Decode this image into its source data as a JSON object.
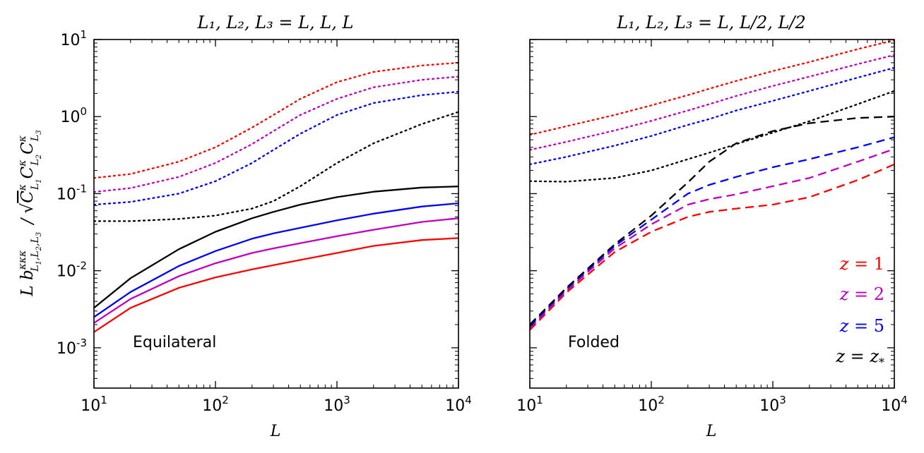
{
  "chart_data": [
    {
      "type": "line",
      "title": "L₁, L₂, L₃ = L, L, L",
      "xlabel": "L",
      "ylabel": "L b^{κκκ}_{L₁,L₂,L₃} / √(C^κ_{L₁} C^κ_{L₂} C^κ_{L₃})",
      "xscale": "log",
      "yscale": "log",
      "xlim": [
        10,
        10000
      ],
      "ylim": [
        0.0003,
        10
      ],
      "annotation": "Equilateral",
      "x": [
        10,
        20,
        50,
        100,
        200,
        300,
        500,
        1000,
        2000,
        5000,
        10000
      ],
      "series": [
        {
          "name": "z=1 solid",
          "color": "#ff0000",
          "style": "solid",
          "values": [
            0.0016,
            0.0033,
            0.006,
            0.0082,
            0.0104,
            0.0118,
            0.0138,
            0.017,
            0.021,
            0.025,
            0.0265
          ]
        },
        {
          "name": "z=2 solid",
          "color": "#bf00bf",
          "style": "solid",
          "values": [
            0.0021,
            0.0043,
            0.0085,
            0.0125,
            0.017,
            0.0195,
            0.0228,
            0.028,
            0.034,
            0.043,
            0.048
          ]
        },
        {
          "name": "z=5 solid",
          "color": "#0000ff",
          "style": "solid",
          "values": [
            0.0025,
            0.0053,
            0.0115,
            0.018,
            0.026,
            0.0305,
            0.036,
            0.045,
            0.055,
            0.068,
            0.075
          ]
        },
        {
          "name": "z=z* solid",
          "color": "#000000",
          "style": "solid",
          "values": [
            0.0033,
            0.008,
            0.019,
            0.032,
            0.048,
            0.058,
            0.072,
            0.09,
            0.106,
            0.12,
            0.124
          ]
        },
        {
          "name": "z=1 dotted",
          "color": "#ff0000",
          "style": "dotted",
          "values": [
            0.16,
            0.18,
            0.26,
            0.4,
            0.72,
            1.05,
            1.7,
            2.8,
            3.8,
            4.6,
            5.0
          ]
        },
        {
          "name": "z=2 dotted",
          "color": "#bf00bf",
          "style": "dotted",
          "values": [
            0.105,
            0.118,
            0.165,
            0.25,
            0.44,
            0.65,
            1.05,
            1.7,
            2.4,
            3.0,
            3.3
          ]
        },
        {
          "name": "z=5 dotted",
          "color": "#0000ff",
          "style": "dotted",
          "values": [
            0.072,
            0.078,
            0.1,
            0.145,
            0.25,
            0.37,
            0.6,
            1.05,
            1.5,
            1.9,
            2.1
          ]
        },
        {
          "name": "z=z* dotted",
          "color": "#000000",
          "style": "dotted",
          "values": [
            0.044,
            0.044,
            0.047,
            0.052,
            0.064,
            0.08,
            0.125,
            0.25,
            0.45,
            0.8,
            1.15
          ]
        }
      ]
    },
    {
      "type": "line",
      "title": "L₁, L₂, L₃ = L, L/2, L/2",
      "xlabel": "L",
      "xscale": "log",
      "yscale": "log",
      "xlim": [
        10,
        10000
      ],
      "ylim": [
        0.0003,
        10
      ],
      "annotation": "Folded",
      "x": [
        10,
        20,
        50,
        100,
        200,
        300,
        500,
        1000,
        2000,
        5000,
        10000
      ],
      "series": [
        {
          "name": "z=1 dashed",
          "color": "#ff0000",
          "style": "dashed",
          "values": [
            0.0017,
            0.0052,
            0.0175,
            0.032,
            0.05,
            0.058,
            0.064,
            0.072,
            0.09,
            0.15,
            0.24
          ]
        },
        {
          "name": "z=2 dashed",
          "color": "#bf00bf",
          "style": "dashed",
          "values": [
            0.0018,
            0.0055,
            0.0195,
            0.04,
            0.072,
            0.085,
            0.098,
            0.125,
            0.16,
            0.26,
            0.38
          ]
        },
        {
          "name": "z=5 dashed",
          "color": "#0000ff",
          "style": "dashed",
          "values": [
            0.0019,
            0.0058,
            0.021,
            0.046,
            0.1,
            0.13,
            0.165,
            0.22,
            0.28,
            0.4,
            0.54
          ]
        },
        {
          "name": "z=z* dashed",
          "color": "#000000",
          "style": "dashed",
          "values": [
            0.002,
            0.006,
            0.022,
            0.052,
            0.14,
            0.26,
            0.45,
            0.65,
            0.82,
            0.96,
            1.0
          ]
        },
        {
          "name": "z=1 dotted",
          "color": "#ff0000",
          "style": "dotted",
          "values": [
            0.58,
            0.75,
            1.05,
            1.4,
            1.9,
            2.3,
            2.9,
            3.9,
            5.1,
            7.5,
            9.8
          ]
        },
        {
          "name": "z=2 dotted",
          "color": "#bf00bf",
          "style": "dotted",
          "values": [
            0.37,
            0.47,
            0.66,
            0.88,
            1.2,
            1.45,
            1.85,
            2.5,
            3.3,
            4.8,
            6.3
          ]
        },
        {
          "name": "z=5 dotted",
          "color": "#0000ff",
          "style": "dotted",
          "values": [
            0.24,
            0.3,
            0.42,
            0.56,
            0.78,
            0.93,
            1.2,
            1.6,
            2.15,
            3.2,
            4.3
          ]
        },
        {
          "name": "z=z* dotted",
          "color": "#000000",
          "style": "dotted",
          "values": [
            0.145,
            0.143,
            0.16,
            0.2,
            0.28,
            0.34,
            0.44,
            0.62,
            0.87,
            1.45,
            2.15
          ]
        }
      ],
      "legend": [
        {
          "base": "z",
          "eq": " = ",
          "val": "1",
          "sub": "",
          "color": "#ff0000"
        },
        {
          "base": "z",
          "eq": " = ",
          "val": "2",
          "sub": "",
          "color": "#bf00bf"
        },
        {
          "base": "z",
          "eq": " = ",
          "val": "5",
          "sub": "",
          "color": "#0000ff"
        },
        {
          "base": "z",
          "eq": " = ",
          "val": "z",
          "sub": "*",
          "color": "#000000"
        }
      ]
    }
  ]
}
